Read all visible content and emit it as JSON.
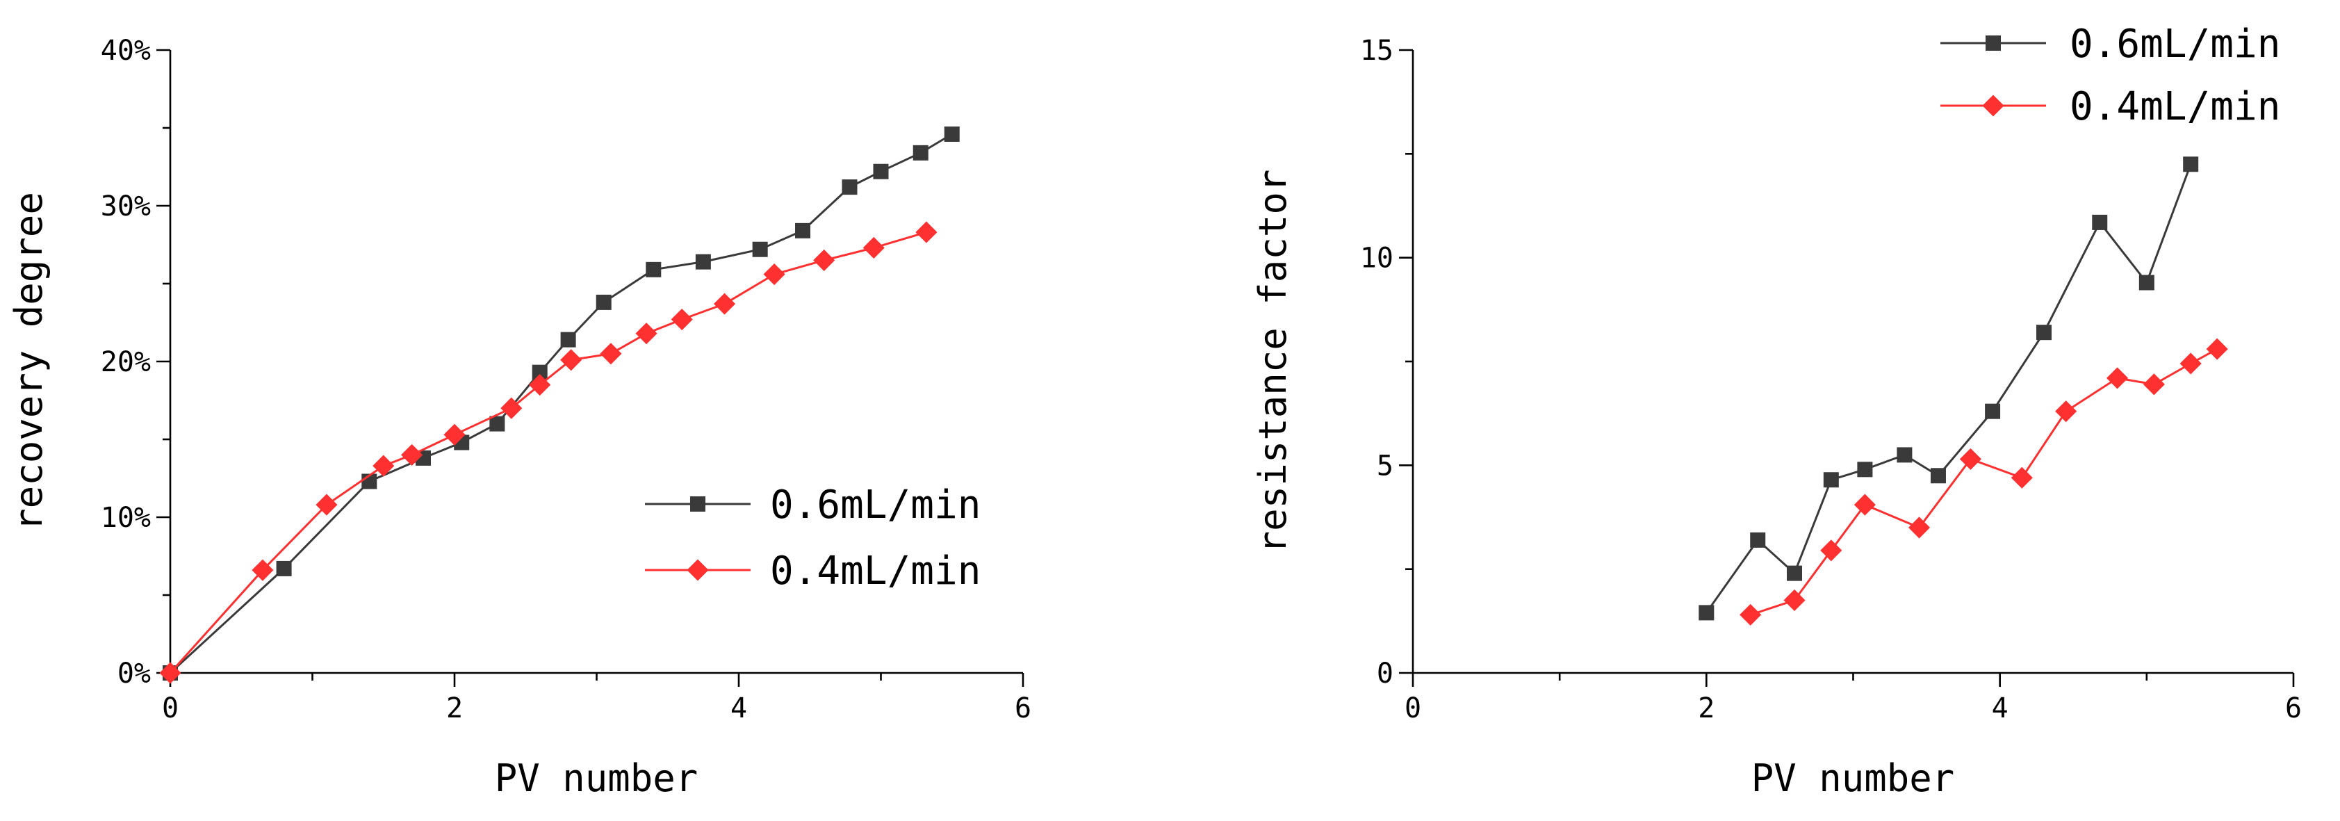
{
  "colors": {
    "series_0.6": "#3a3a3a",
    "series_0.4": "#ff3030",
    "axis": "#000000"
  },
  "chart_data": [
    {
      "type": "line",
      "xlabel": "PV number",
      "ylabel": "recovery degree",
      "xlim": [
        0,
        6
      ],
      "ylim": [
        0,
        40
      ],
      "xticks": [
        "0",
        "2",
        "4",
        "6"
      ],
      "yticks": [
        "0%",
        "10%",
        "20%",
        "30%",
        "40%"
      ],
      "legend_position": "center-right",
      "series": [
        {
          "name": "0.6mL/min",
          "color": "#3a3a3a",
          "x": [
            0,
            0.8,
            1.4,
            1.78,
            2.05,
            2.3,
            2.6,
            2.8,
            3.05,
            3.4,
            3.75,
            4.15,
            4.45,
            4.78,
            5.0,
            5.28,
            5.5
          ],
          "y": [
            0,
            6.7,
            12.3,
            13.8,
            14.8,
            16.0,
            19.3,
            21.4,
            23.8,
            25.9,
            26.4,
            27.2,
            28.4,
            31.2,
            32.2,
            33.4,
            34.6
          ]
        },
        {
          "name": "0.4mL/min",
          "color": "#ff3030",
          "x": [
            0,
            0.65,
            1.1,
            1.5,
            1.7,
            2.0,
            2.4,
            2.6,
            2.82,
            3.1,
            3.35,
            3.6,
            3.9,
            4.25,
            4.6,
            4.95,
            5.32
          ],
          "y": [
            0,
            6.6,
            10.8,
            13.3,
            14.0,
            15.3,
            17.0,
            18.5,
            20.1,
            20.5,
            21.8,
            22.7,
            23.7,
            25.6,
            26.5,
            27.3,
            28.3
          ]
        }
      ]
    },
    {
      "type": "line",
      "xlabel": "PV number",
      "ylabel": "resistance factor",
      "xlim": [
        0,
        6
      ],
      "ylim": [
        0,
        15
      ],
      "xticks": [
        "0",
        "2",
        "4",
        "6"
      ],
      "yticks": [
        "0",
        "5",
        "10",
        "15"
      ],
      "legend_position": "top-right",
      "series": [
        {
          "name": "0.6mL/min",
          "color": "#3a3a3a",
          "x": [
            2.0,
            2.35,
            2.6,
            2.85,
            3.08,
            3.35,
            3.58,
            3.95,
            4.3,
            4.68,
            5.0,
            5.3
          ],
          "y": [
            1.45,
            3.2,
            2.4,
            4.65,
            4.9,
            5.25,
            4.75,
            6.3,
            8.2,
            10.85,
            9.4,
            12.25
          ]
        },
        {
          "name": "0.4mL/min",
          "color": "#ff3030",
          "x": [
            2.3,
            2.6,
            2.85,
            3.08,
            3.45,
            3.8,
            4.15,
            4.45,
            4.8,
            5.05,
            5.3,
            5.48
          ],
          "y": [
            1.4,
            1.75,
            2.95,
            4.05,
            3.5,
            5.15,
            4.7,
            6.3,
            7.1,
            6.95,
            7.45,
            7.8
          ]
        }
      ]
    }
  ]
}
